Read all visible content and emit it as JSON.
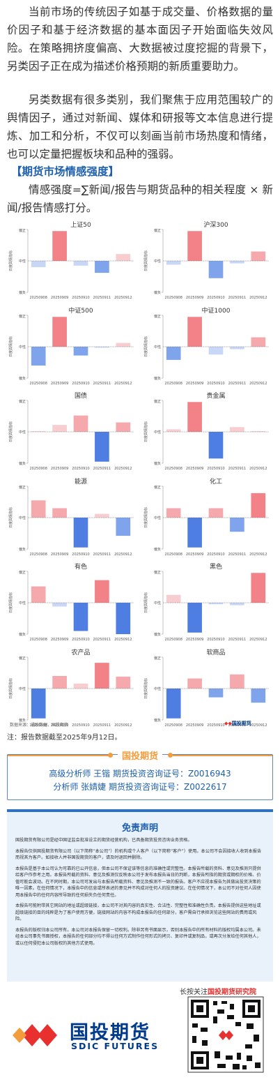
{
  "paragraphs": [
    "当前市场的传统因子如基于成交量、价格数据的量价因子和基于经济数据的基本面因子开始面临失效风险。在策略拥挤度偏高、大数据被过度挖掘的背景下，另类因子正在成为描述价格预期的新质重要助力。",
    "另类数据有很多类别，我们聚焦于应用范围较广的舆情因子，通过对新闻、媒体和研报等文本信息进行提炼、加工和分析，不仅可以刻画当前市场热度和情绪，也可以定量把握板块和品种的强弱。"
  ],
  "section_title": "【期货市场情感强度】",
  "formula": "情感强度=∑新闻/报告与期货品种的相关程度 × 新闻/报告情感打分。",
  "axis": {
    "ylabel": "日度舆情指标",
    "top": "偏正",
    "mid": "中性",
    "bottom": "偏负"
  },
  "chart_data": [
    {
      "type": "bar",
      "title": "上证50",
      "categories": [
        "20250908",
        "20250909",
        "20250910",
        "20250911",
        "20250912"
      ],
      "values": [
        -0.2,
        0.95,
        -0.15,
        -0.38,
        0.22
      ],
      "ylim": [
        -1,
        1
      ]
    },
    {
      "type": "bar",
      "title": "沪深300",
      "categories": [
        "20250908",
        "20250909",
        "20250910",
        "20250911",
        "20250912"
      ],
      "values": [
        -0.12,
        0.95,
        -0.55,
        -0.08,
        0.3
      ],
      "ylim": [
        -1,
        1
      ]
    },
    {
      "type": "bar",
      "title": "中证500",
      "categories": [
        "20250908",
        "20250909",
        "20250910",
        "20250911",
        "20250912"
      ],
      "values": [
        -0.6,
        0.95,
        -0.28,
        -0.03,
        0.12
      ],
      "ylim": [
        -1,
        1
      ]
    },
    {
      "type": "bar",
      "title": "中证1000",
      "categories": [
        "20250908",
        "20250909",
        "20250910",
        "20250911",
        "20250912"
      ],
      "values": [
        -0.42,
        0.95,
        -0.25,
        -0.08,
        0.3
      ],
      "ylim": [
        -1,
        1
      ]
    },
    {
      "type": "bar",
      "title": "国债",
      "categories": [
        "20250908",
        "20250909",
        "20250910",
        "20250911",
        "20250912"
      ],
      "values": [
        0.02,
        0.22,
        0.52,
        -0.95,
        0.3
      ],
      "ylim": [
        -1,
        1
      ]
    },
    {
      "type": "bar",
      "title": "贵金属",
      "categories": [
        "20250908",
        "20250909",
        "20250910",
        "20250911",
        "20250912"
      ],
      "values": [
        0.08,
        0.95,
        -0.85,
        0.15,
        0.02
      ],
      "ylim": [
        -1,
        1
      ]
    },
    {
      "type": "bar",
      "title": "能源",
      "categories": [
        "20250908",
        "20250909",
        "20250910",
        "20250911",
        "20250912"
      ],
      "values": [
        0.55,
        0.3,
        -0.95,
        0.12,
        -0.58
      ],
      "ylim": [
        -1,
        1
      ]
    },
    {
      "type": "bar",
      "title": "化工",
      "categories": [
        "20250908",
        "20250909",
        "20250910",
        "20250911",
        "20250912"
      ],
      "values": [
        0.3,
        -0.95,
        0.3,
        -0.45,
        0.78
      ],
      "ylim": [
        -1,
        1
      ]
    },
    {
      "type": "bar",
      "title": "有色",
      "categories": [
        "20250908",
        "20250909",
        "20250910",
        "20250911",
        "20250912"
      ],
      "values": [
        0.52,
        -0.12,
        -0.9,
        0.72,
        -1.0
      ],
      "ylim": [
        -1,
        1
      ]
    },
    {
      "type": "bar",
      "title": "黑色",
      "categories": [
        "20250908",
        "20250909",
        "20250910",
        "20250911",
        "20250912"
      ],
      "values": [
        0.25,
        -0.95,
        -0.05,
        -0.08,
        0.95
      ],
      "ylim": [
        -1,
        1
      ]
    },
    {
      "type": "bar",
      "title": "农产品",
      "categories": [
        "20250908",
        "20250909",
        "20250910",
        "20250911",
        "20250912"
      ],
      "values": [
        -0.95,
        0.4,
        0.16,
        0.82,
        0.38
      ],
      "ylim": [
        -1,
        1
      ]
    },
    {
      "type": "bar",
      "title": "软商品",
      "categories": [
        "20250908",
        "20250909",
        "20250910",
        "20250911",
        "20250912"
      ],
      "values": [
        -0.95,
        0.32,
        -0.28,
        0.45,
        -0.45
      ],
      "ylim": [
        -1,
        1
      ]
    }
  ],
  "colors": {
    "pos_strong": "#f28288",
    "pos_mid": "#f6a9ad",
    "pos_light": "#f8cdd0",
    "neg_strong": "#4f7ee3",
    "neg_mid": "#7fa4ec",
    "neg_light": "#c8d7f5",
    "brand_blue": "#003a8c",
    "accent_orange": "#f39c3c",
    "brand_red": "#e8312f"
  },
  "source": "数据来源：通联数据，国投期货",
  "logo_small": "国投期货",
  "note": "注：报告数据截至2025年9月12日。",
  "analyst_header": "国投期货",
  "analysts": [
    "高级分析师  王锴  期货投资咨询证号：Z0016943",
    "分析师  张婧婕  期货投资咨询证号：Z0022617"
  ],
  "disclaimer": {
    "title": "免责声明",
    "paragraphs": [
      "国投期货有限公司是经中国证监会批准设立的期货经营机构，已具备期货投资咨询业务资格。",
      "本报告仅供国投期货有限公司（以下简称“本公司”）的机构或个人客户（以下简称“客户”）使用。本公司不会因接收人收到本报告而视其为客户。如接收人并非国投期货的客户，请及时退回并删除。",
      "本报告是基于本公司认为可靠的已公开信息，但本公司不保证该等信息的准确性或完整性。本报告所载的资料、意见及推测只提供给客户作参考之用。本报告所载的资料、意见及推测仅反映本公司于发布本报告当日的判断，本报告所指的期货或期权的价格、价值可能会波动。在不同时期，本公司可发出与本报告所载资料、意见及推测不一致的报告。客户不应视本报告为其做出投资决策的唯一因素。在任何情况下，本报告中的信息或所表述的意见并不构成对任何人的投资建议。在任何情况下，本公司不对任何人因使用本报告中的任何内容所导致的任何损失负任何责任。",
      "本报告可能附带其它网站的地址或超级链接，本公司不对其内容的真实性、合法性、完整性和准确性负责。本报告提供这些地址或超级链接的目的纯粹是为了客户使用方便，链接网站的内容不构成本报告的任何部分，客户需自行承担浏览这些网站的费用或风险。",
      "本报告的版权归本公司所有。本公司对本报告保留一切权利。除非另有书面显示，否则本报告中的所有材料的版权均属本公司。未经本公司事先书面授权，本报告的任何部分均不得以任何方式制作任何形式的拷贝、复印件或复制品，或再次分发给任何其他人，或以任何侵犯本公司版权的其他方式使用。"
    ]
  },
  "follow": {
    "prefix": "长按关注",
    "name": "国投期货研究院"
  },
  "brand": {
    "cn": "国投期货",
    "en": "SDIC FUTURES"
  }
}
